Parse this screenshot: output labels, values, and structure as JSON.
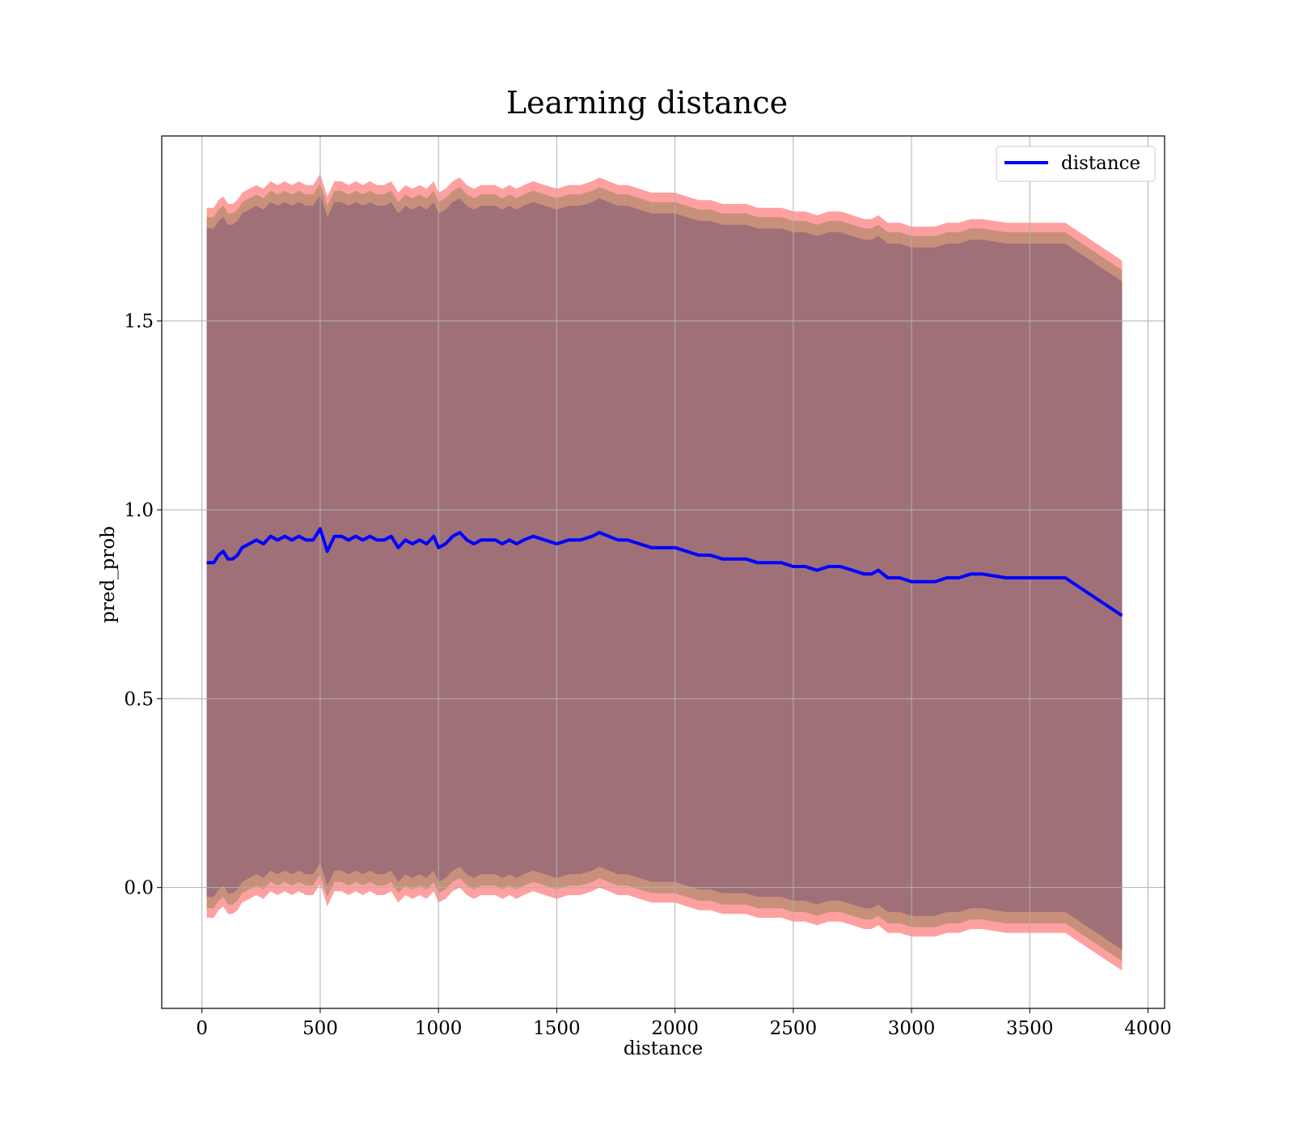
{
  "chart_data": {
    "type": "line",
    "title": "Learning distance",
    "xlabel": "distance",
    "ylabel": "pred_prob",
    "xlim": [
      -170,
      4070
    ],
    "ylim": [
      -0.32,
      1.99
    ],
    "xticks": [
      0,
      500,
      1000,
      1500,
      2000,
      2500,
      3000,
      3500,
      4000
    ],
    "xtick_labels": [
      "0",
      "500",
      "1000",
      "1500",
      "2000",
      "2500",
      "3000",
      "3500",
      "4000"
    ],
    "yticks": [
      0.0,
      0.5,
      1.0,
      1.5
    ],
    "ytick_labels": [
      "0.0",
      "0.5",
      "1.0",
      "1.5"
    ],
    "grid": true,
    "legend": {
      "position": "top-right",
      "entries": [
        "distance"
      ]
    },
    "colors": {
      "line": "#0000ff",
      "band_outer": "#ffa0a0",
      "band_middle": "#c8907a",
      "band_inner": "#a07078"
    },
    "series": [
      {
        "name": "distance",
        "x": [
          20,
          50,
          70,
          90,
          110,
          130,
          150,
          170,
          200,
          230,
          260,
          290,
          320,
          350,
          380,
          410,
          440,
          470,
          500,
          530,
          560,
          590,
          620,
          650,
          680,
          710,
          740,
          770,
          800,
          830,
          860,
          890,
          920,
          950,
          980,
          1000,
          1030,
          1060,
          1090,
          1120,
          1150,
          1180,
          1210,
          1240,
          1270,
          1300,
          1330,
          1360,
          1400,
          1450,
          1500,
          1550,
          1600,
          1650,
          1680,
          1720,
          1760,
          1800,
          1850,
          1900,
          1950,
          2000,
          2050,
          2100,
          2150,
          2200,
          2250,
          2300,
          2350,
          2400,
          2450,
          2500,
          2550,
          2600,
          2650,
          2700,
          2750,
          2800,
          2830,
          2860,
          2900,
          2950,
          3000,
          3050,
          3100,
          3150,
          3200,
          3250,
          3300,
          3400,
          3500,
          3650,
          3890
        ],
        "y": [
          0.86,
          0.86,
          0.88,
          0.89,
          0.87,
          0.87,
          0.88,
          0.9,
          0.91,
          0.92,
          0.91,
          0.93,
          0.92,
          0.93,
          0.92,
          0.93,
          0.92,
          0.92,
          0.95,
          0.89,
          0.93,
          0.93,
          0.92,
          0.93,
          0.92,
          0.93,
          0.92,
          0.92,
          0.93,
          0.9,
          0.92,
          0.91,
          0.92,
          0.91,
          0.93,
          0.9,
          0.91,
          0.93,
          0.94,
          0.92,
          0.91,
          0.92,
          0.92,
          0.92,
          0.91,
          0.92,
          0.91,
          0.92,
          0.93,
          0.92,
          0.91,
          0.92,
          0.92,
          0.93,
          0.94,
          0.93,
          0.92,
          0.92,
          0.91,
          0.9,
          0.9,
          0.9,
          0.89,
          0.88,
          0.88,
          0.87,
          0.87,
          0.87,
          0.86,
          0.86,
          0.86,
          0.85,
          0.85,
          0.84,
          0.85,
          0.85,
          0.84,
          0.83,
          0.83,
          0.84,
          0.82,
          0.82,
          0.81,
          0.81,
          0.81,
          0.82,
          0.82,
          0.83,
          0.83,
          0.82,
          0.82,
          0.82,
          0.72
        ],
        "band_outer_halfwidth": 0.94,
        "band_middle_halfwidth": 0.915,
        "band_inner_halfwidth": 0.885
      }
    ]
  }
}
